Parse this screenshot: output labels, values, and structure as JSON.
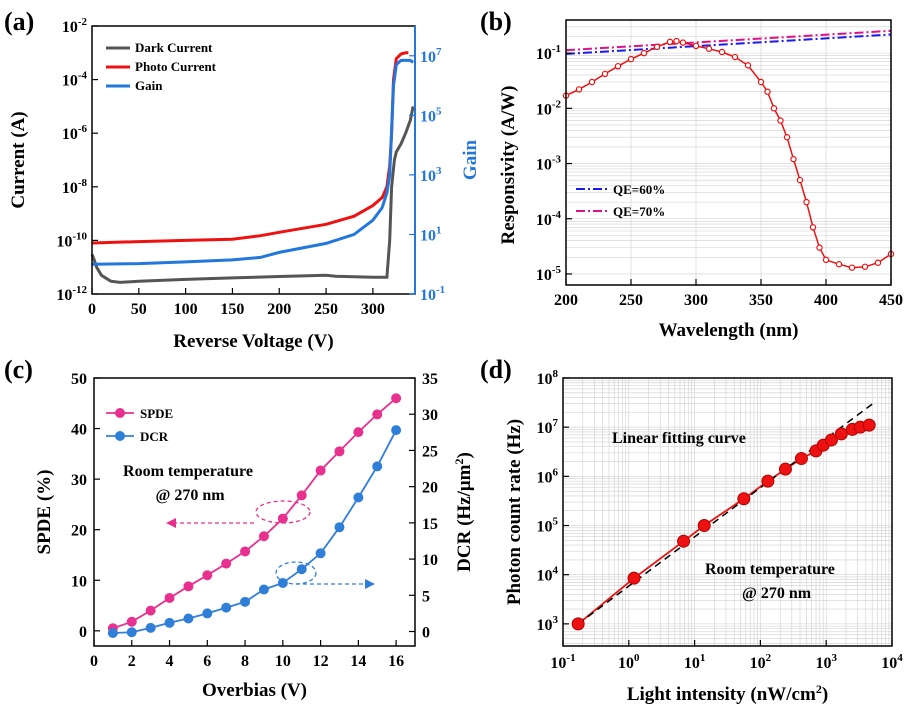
{
  "chart_data": [
    {
      "panel": "(a)",
      "type": "line",
      "xlabel": "Reverse Voltage (V)",
      "ylabel": "Current (A)",
      "y2label": "Gain",
      "xlim": [
        0,
        345
      ],
      "ylim_log10": [
        -12,
        -2
      ],
      "y2lim_log10": [
        -1,
        8
      ],
      "xticks": [
        "0",
        "50",
        "100",
        "150",
        "200",
        "250",
        "300"
      ],
      "yticks": [
        "10-12",
        "10-10",
        "10-8",
        "10-6",
        "10-4",
        "10-2"
      ],
      "y2ticks": [
        "10-1",
        "101",
        "103",
        "105",
        "107"
      ],
      "legend": [
        "Dark Current",
        "Photo Current",
        "Gain"
      ],
      "series": [
        {
          "name": "Dark Current",
          "color": "#555555",
          "axis": "left",
          "x": [
            0,
            2,
            5,
            10,
            20,
            30,
            50,
            100,
            150,
            200,
            250,
            260,
            300,
            315,
            318,
            320,
            323,
            325,
            330,
            335,
            340,
            343
          ],
          "y": [
            3e-11,
            2e-11,
            1e-11,
            5e-12,
            3e-12,
            2.7e-12,
            3e-12,
            3.5e-12,
            4e-12,
            4.5e-12,
            5e-12,
            4.6e-12,
            4.2e-12,
            4.2e-12,
            1e-10,
            1e-08,
            1e-07,
            2e-07,
            4e-07,
            1e-06,
            3e-06,
            1e-05
          ]
        },
        {
          "name": "Photo Current",
          "color": "#ee1111",
          "axis": "left",
          "x": [
            0,
            50,
            100,
            150,
            180,
            200,
            250,
            280,
            300,
            310,
            315,
            318,
            320,
            322,
            325,
            330,
            335,
            338
          ],
          "y": [
            8e-11,
            9e-11,
            1e-10,
            1.1e-10,
            1.5e-10,
            2e-10,
            4e-10,
            8e-10,
            2e-09,
            4e-09,
            1e-08,
            6e-08,
            1e-06,
            0.0001,
            0.0006,
            0.0009,
            0.001,
            0.001
          ]
        },
        {
          "name": "Gain",
          "color": "#2277dd",
          "axis": "right",
          "x": [
            0,
            50,
            100,
            150,
            180,
            200,
            250,
            280,
            300,
            310,
            315,
            318,
            320,
            322,
            325,
            330,
            335,
            340,
            343
          ],
          "y": [
            1,
            1.05,
            1.2,
            1.4,
            1.7,
            2.5,
            5,
            10,
            30,
            80,
            250,
            1000,
            30000.0,
            1000000.0,
            5000000.0,
            7000000.0,
            7000000.0,
            7000000.0,
            6000000.0
          ]
        }
      ]
    },
    {
      "panel": "(b)",
      "type": "line",
      "xlabel": "Wavelength (nm)",
      "ylabel": "Responsivity (A/W)",
      "xlim": [
        200,
        450
      ],
      "ylim_log10": [
        -5.2,
        -0.4
      ],
      "xticks": [
        "200",
        "250",
        "300",
        "350",
        "400",
        "450"
      ],
      "yticks": [
        "10-5",
        "10-4",
        "10-3",
        "10-2",
        "10-1"
      ],
      "legend": [
        "QE=60%",
        "QE=70%"
      ],
      "series": [
        {
          "name": "QE=60%",
          "color": "#1a1aee",
          "dash": true,
          "x": [
            200,
            450
          ],
          "y": [
            0.0968,
            0.2177
          ]
        },
        {
          "name": "QE=70%",
          "color": "#dd1188",
          "dash": true,
          "x": [
            200,
            450
          ],
          "y": [
            0.1129,
            0.254
          ]
        },
        {
          "name": "Responsivity",
          "color": "#ee1111",
          "markers": true,
          "x": [
            200,
            210,
            220,
            230,
            240,
            250,
            260,
            270,
            280,
            285,
            290,
            300,
            310,
            320,
            330,
            340,
            350,
            355,
            360,
            365,
            370,
            375,
            380,
            385,
            390,
            395,
            400,
            410,
            420,
            430,
            440,
            450
          ],
          "y": [
            0.017,
            0.022,
            0.03,
            0.042,
            0.058,
            0.078,
            0.1,
            0.13,
            0.16,
            0.165,
            0.155,
            0.135,
            0.12,
            0.105,
            0.085,
            0.06,
            0.03,
            0.02,
            0.01,
            0.006,
            0.003,
            0.0012,
            0.0005,
            0.0002,
            7e-05,
            3e-05,
            1.8e-05,
            1.5e-05,
            1.3e-05,
            1.35e-05,
            1.6e-05,
            2.3e-05
          ]
        }
      ]
    },
    {
      "panel": "(c)",
      "type": "line",
      "xlabel": "Overbias (V)",
      "ylabel": "SPDE (%)",
      "y2label": "DCR (Hz/μm²)",
      "xlim": [
        0,
        17
      ],
      "ylim": [
        -3,
        50
      ],
      "y2lim": [
        -2,
        35
      ],
      "xticks": [
        "0",
        "2",
        "4",
        "6",
        "8",
        "10",
        "12",
        "14",
        "16"
      ],
      "yticks": [
        "0",
        "10",
        "20",
        "30",
        "40",
        "50"
      ],
      "y2ticks": [
        "0",
        "5",
        "10",
        "15",
        "20",
        "25",
        "30",
        "35"
      ],
      "legend": [
        "SPDE",
        "DCR"
      ],
      "annotations": [
        "Room temperature",
        "@ 270 nm"
      ],
      "series": [
        {
          "name": "SPDE",
          "color": "#e8308f",
          "axis": "left",
          "x": [
            1,
            2,
            3,
            4,
            5,
            6,
            7,
            8,
            9,
            10,
            11,
            12,
            13,
            14,
            15,
            16
          ],
          "y": [
            0.5,
            1.8,
            4,
            6.5,
            8.8,
            11,
            13.3,
            15.7,
            18.7,
            22.2,
            26.8,
            31.7,
            35.5,
            39.3,
            42.8,
            46
          ]
        },
        {
          "name": "DCR",
          "color": "#2f7fd8",
          "axis": "right",
          "x": [
            1,
            2,
            3,
            4,
            5,
            6,
            7,
            8,
            9,
            10,
            11,
            12,
            13,
            14,
            15,
            16
          ],
          "y": [
            -0.2,
            -0.1,
            0.5,
            1.2,
            1.8,
            2.5,
            3.3,
            4.1,
            5.8,
            6.7,
            8.6,
            10.8,
            14.4,
            18.5,
            22.8,
            27.8
          ]
        }
      ]
    },
    {
      "panel": "(d)",
      "type": "scatter",
      "xlabel": "Light intensity (nW/cm²)",
      "ylabel": "Photon count rate (Hz)",
      "xlim_log10": [
        -1,
        4
      ],
      "ylim_log10": [
        2.55,
        8
      ],
      "xticks": [
        "10-1",
        "100",
        "101",
        "102",
        "103",
        "104"
      ],
      "yticks": [
        "103",
        "104",
        "105",
        "106",
        "107",
        "108"
      ],
      "annotations": [
        "Linear fitting curve",
        "Room temperature",
        "@ 270 nm"
      ],
      "series": [
        {
          "name": "Photon count rate",
          "color": "#ee1111",
          "x": [
            0.17,
            1.2,
            6.8,
            14,
            56,
            130,
            240,
            420,
            700,
            900,
            1200,
            1700,
            2500,
            3300,
            4500
          ],
          "y": [
            1000,
            8500,
            48000,
            100000,
            350000,
            800000,
            1400000,
            2300000,
            3300000,
            4300000,
            5500000,
            7300000,
            9000000,
            10000000,
            11000000
          ]
        },
        {
          "name": "Linear fit",
          "color": "#000000",
          "dash": true,
          "x": [
            0.17,
            5000
          ],
          "y": [
            1000,
            29400000
          ]
        }
      ]
    }
  ]
}
